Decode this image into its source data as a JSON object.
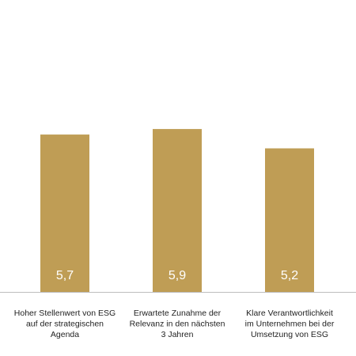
{
  "chart_data": {
    "type": "bar",
    "categories": [
      [
        "Hoher Stellenwert von ESG",
        "auf der strategischen",
        "Agenda"
      ],
      [
        "Erwartete Zunahme der",
        "Relevanz in den nächsten",
        "3 Jahren"
      ],
      [
        "Klare Verantwortlichkeit",
        "im Unternehmen bei der",
        "Umsetzung von ESG"
      ]
    ],
    "values": [
      5.7,
      5.9,
      5.2
    ],
    "value_labels": [
      "5,7",
      "5,9",
      "5,2"
    ],
    "ylim": [
      0,
      10
    ],
    "grid": false,
    "colors": {
      "bar": "#BF9D55",
      "value_text": "#FFFFFF",
      "axis": "#BDBDBD",
      "category_text": "#222222"
    }
  }
}
